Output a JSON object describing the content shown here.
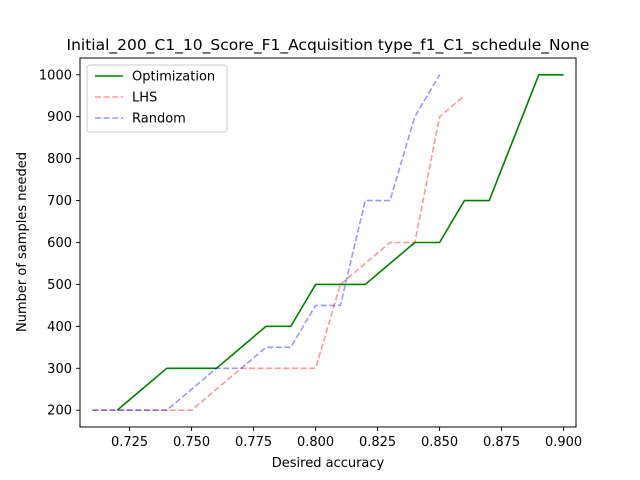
{
  "chart_data": {
    "type": "line",
    "title": "Initial_200_C1_10_Score_F1_Acquisition type_f1_C1_schedule_None",
    "xlabel": "Desired accuracy",
    "ylabel": "Number of samples needed",
    "xlim": [
      0.705,
      0.905
    ],
    "ylim": [
      160,
      1040
    ],
    "xticks": [
      0.725,
      0.75,
      0.775,
      0.8,
      0.825,
      0.85,
      0.875,
      0.9
    ],
    "xtick_labels": [
      "0.725",
      "0.750",
      "0.775",
      "0.800",
      "0.825",
      "0.850",
      "0.875",
      "0.900"
    ],
    "yticks": [
      200,
      300,
      400,
      500,
      600,
      700,
      800,
      900,
      1000
    ],
    "ytick_labels": [
      "200",
      "300",
      "400",
      "500",
      "600",
      "700",
      "800",
      "900",
      "1000"
    ],
    "grid": false,
    "legend_position": "top-left",
    "series": [
      {
        "name": "Optimization",
        "color": "#008000",
        "style": "solid",
        "alpha": 1.0,
        "x": [
          0.72,
          0.73,
          0.74,
          0.75,
          0.76,
          0.77,
          0.78,
          0.79,
          0.8,
          0.81,
          0.82,
          0.83,
          0.84,
          0.85,
          0.86,
          0.87,
          0.88,
          0.89,
          0.9
        ],
        "y": [
          200,
          250,
          300,
          300,
          300,
          350,
          400,
          400,
          500,
          500,
          500,
          550,
          600,
          600,
          700,
          700,
          850,
          1000,
          1000
        ]
      },
      {
        "name": "LHS",
        "color": "#ff0000",
        "style": "dashed",
        "alpha": 0.4,
        "x": [
          0.71,
          0.72,
          0.73,
          0.74,
          0.75,
          0.76,
          0.77,
          0.78,
          0.79,
          0.8,
          0.81,
          0.82,
          0.83,
          0.84,
          0.85,
          0.86
        ],
        "y": [
          200,
          200,
          200,
          200,
          200,
          250,
          300,
          300,
          300,
          300,
          500,
          550,
          600,
          600,
          900,
          950
        ]
      },
      {
        "name": "Random",
        "color": "#0000ff",
        "style": "dashed",
        "alpha": 0.4,
        "x": [
          0.71,
          0.72,
          0.73,
          0.74,
          0.75,
          0.76,
          0.77,
          0.78,
          0.79,
          0.8,
          0.81,
          0.82,
          0.83,
          0.84,
          0.85
        ],
        "y": [
          200,
          200,
          200,
          200,
          250,
          300,
          300,
          350,
          350,
          450,
          450,
          700,
          700,
          900,
          1000
        ]
      }
    ]
  }
}
